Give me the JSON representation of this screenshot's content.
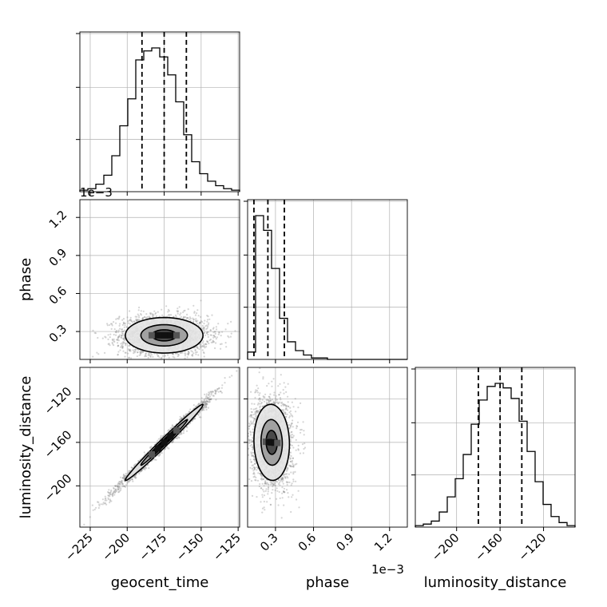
{
  "chart_data": {
    "type": "corner",
    "parameters": [
      "geocent_time",
      "phase",
      "luminosity_distance"
    ],
    "labels": {
      "x": [
        "geocent_time",
        "phase",
        "luminosity_distance"
      ],
      "y_left": [
        "phase",
        "luminosity_distance"
      ]
    },
    "offset_text": "1e−3",
    "ranges": {
      "geocent_time": [
        -232,
        -124
      ],
      "phase": [
        0.08,
        1.34
      ],
      "luminosity_distance": [
        -238,
        -91
      ]
    },
    "ticks": {
      "geocent_time": [
        {
          "v": -225,
          "label": "−225"
        },
        {
          "v": -200,
          "label": "−200"
        },
        {
          "v": -175,
          "label": "−175"
        },
        {
          "v": -150,
          "label": "−150"
        },
        {
          "v": -125,
          "label": "−125"
        }
      ],
      "phase": [
        {
          "v": 0.3,
          "label": "0.3"
        },
        {
          "v": 0.6,
          "label": "0.6"
        },
        {
          "v": 0.9,
          "label": "0.9"
        },
        {
          "v": 1.2,
          "label": "1.2"
        }
      ],
      "luminosity_distance_x": [
        {
          "v": -200,
          "label": "−200"
        },
        {
          "v": -160,
          "label": "−160"
        },
        {
          "v": -120,
          "label": "−120"
        }
      ],
      "luminosity_distance_y": [
        {
          "v": -200,
          "label": "−200"
        },
        {
          "v": -160,
          "label": "−160"
        },
        {
          "v": -120,
          "label": "−120"
        }
      ]
    },
    "histograms": {
      "geocent_time": {
        "edges_start": -232,
        "bin_width": 5.4,
        "counts": [
          1,
          2,
          5,
          11,
          24,
          44,
          62,
          88,
          94,
          96,
          90,
          78,
          60,
          38,
          20,
          12,
          7,
          4,
          2,
          1
        ],
        "quantiles": [
          -190,
          -175,
          -160
        ]
      },
      "phase": {
        "edges_start": 0.08,
        "bin_width": 0.063,
        "counts": [
          5,
          98,
          88,
          62,
          28,
          12,
          6,
          3,
          1,
          1,
          0,
          0,
          0,
          0,
          0,
          0,
          0,
          0,
          0,
          0
        ],
        "quantiles": [
          0.13,
          0.24,
          0.37
        ]
      },
      "luminosity_distance": {
        "edges_start": -238,
        "bin_width": 7.35,
        "counts": [
          1,
          2,
          4,
          10,
          20,
          32,
          48,
          68,
          84,
          93,
          95,
          92,
          85,
          70,
          50,
          30,
          15,
          7,
          3,
          1
        ],
        "quantiles": [
          -180,
          -160,
          -140
        ]
      }
    },
    "pairs": {
      "phase_vs_geocent_time": {
        "x_mean": -175,
        "y_mean": 0.27,
        "x_std": 15,
        "y_std": 0.08,
        "correlation": 0.0
      },
      "luminosity_distance_vs_geocent_time": {
        "x_mean": -175,
        "y_mean": -160,
        "x_std": 15,
        "y_std": 20,
        "correlation": 0.99
      },
      "luminosity_distance_vs_phase": {
        "x_mean": 0.27,
        "y_mean": -160,
        "x_std": 0.08,
        "y_std": 20,
        "correlation": -0.05
      }
    },
    "contour_levels": [
      "inner",
      "middle",
      "outer"
    ],
    "grid": true,
    "colors": {
      "line": "#000000",
      "grid": "#b0b0b0",
      "sample": "#888888"
    }
  }
}
